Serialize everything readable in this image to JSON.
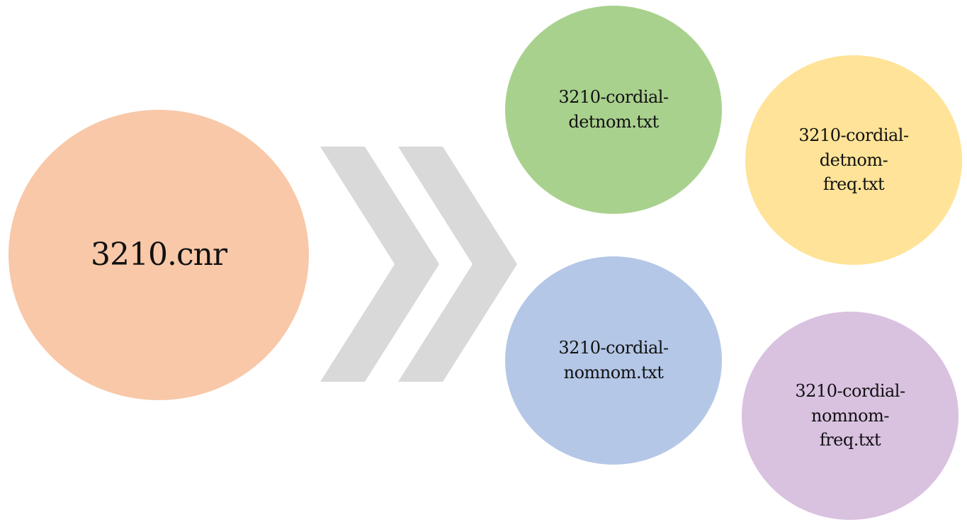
{
  "source": {
    "label": "3210.cnr",
    "color": "#F8C8A8"
  },
  "outputs": {
    "detnom": {
      "lines": [
        "3210-cordial-",
        "detnom.txt"
      ],
      "color": "#A9D18E"
    },
    "detnom_freq": {
      "lines": [
        "3210-cordial-",
        "detnom-",
        "freq.txt"
      ],
      "color": "#FFE398"
    },
    "nomnom": {
      "lines": [
        "3210-cordial-",
        "nomnom.txt"
      ],
      "color": "#B4C7E7"
    },
    "nomnom_freq": {
      "lines": [
        "3210-cordial-",
        "nomnom-",
        "freq.txt"
      ],
      "color": "#D9C1E0"
    }
  },
  "arrow": {
    "icon": "double-chevron-right-icon",
    "color": "#D9D9D9"
  }
}
